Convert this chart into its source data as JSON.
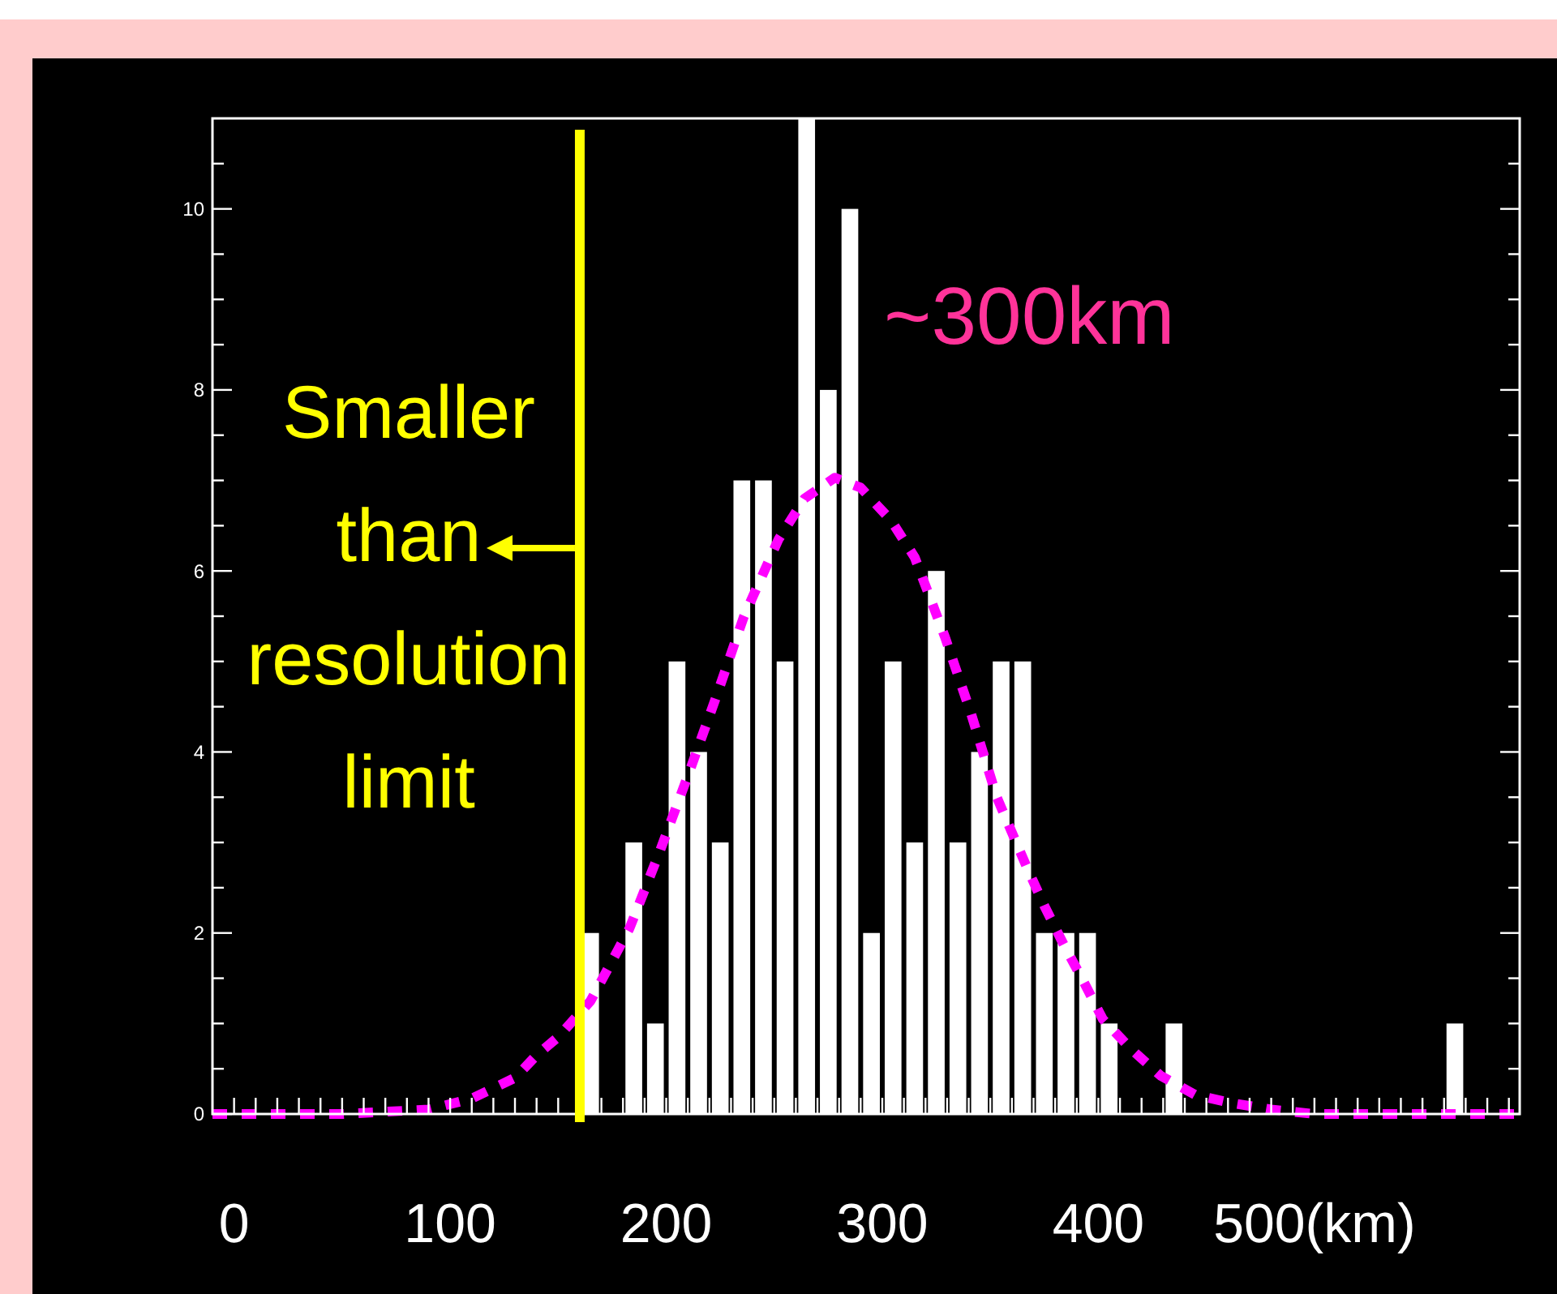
{
  "chart_data": {
    "type": "histogram",
    "series": [
      {
        "color": "#ffffff",
        "bins": [
          160,
          170,
          180,
          190,
          200,
          210,
          220,
          230,
          240,
          250,
          260,
          270,
          280,
          290,
          300,
          310,
          320,
          330,
          340,
          350,
          360,
          370,
          380,
          390,
          400,
          410,
          420,
          430,
          440,
          450,
          460,
          470,
          480,
          490,
          500,
          510,
          520,
          530,
          540,
          550,
          560,
          570,
          580,
          590
        ],
        "values": [
          2,
          0,
          3,
          1,
          5,
          4,
          3,
          7,
          7,
          5,
          11,
          8,
          10,
          2,
          5,
          3,
          6,
          3,
          4,
          5,
          5,
          2,
          2,
          2,
          1,
          0,
          0,
          1,
          0,
          0,
          0,
          0,
          0,
          0,
          0,
          0,
          0,
          0,
          0,
          0,
          1,
          0,
          0
        ]
      },
      {
        "type": "line",
        "color": "#ff00ff",
        "line_style": "dashed",
        "x": [
          -10,
          0,
          50,
          90,
          110,
          130,
          140,
          150,
          165,
          183,
          197,
          211,
          223,
          236,
          252,
          264,
          278,
          290,
          304,
          315,
          329,
          341,
          353,
          367,
          375,
          384,
          393,
          402,
          415,
          429,
          445,
          462,
          480,
          500,
          550,
          595
        ],
        "values": [
          0,
          0,
          0,
          0.05,
          0.17,
          0.4,
          0.65,
          0.85,
          1.25,
          2.05,
          2.9,
          3.8,
          4.6,
          5.5,
          6.35,
          6.8,
          7.03,
          6.92,
          6.56,
          6.15,
          5.27,
          4.43,
          3.5,
          2.72,
          2.3,
          1.87,
          1.47,
          1.05,
          0.72,
          0.42,
          0.21,
          0.12,
          0.05,
          0,
          0,
          0
        ]
      }
    ],
    "xlim": [
      -10,
      595
    ],
    "ylim": [
      0,
      11
    ],
    "xticks": [
      0,
      {
        "value": 10,
        "label": null
      },
      {
        "value": 20,
        "label": null
      },
      {
        "value": 30,
        "label": null
      },
      {
        "value": 40,
        "label": null
      },
      {
        "value": 50,
        "label": null
      },
      {
        "value": 60,
        "label": null
      },
      {
        "value": 70,
        "label": null
      },
      {
        "value": 80,
        "label": null
      },
      {
        "value": 90,
        "label": null
      },
      100,
      {
        "value": 110,
        "label": null
      },
      {
        "value": 120,
        "label": null
      },
      {
        "value": 130,
        "label": null
      },
      {
        "value": 140,
        "label": null
      },
      {
        "value": 150,
        "label": null
      },
      {
        "value": 160,
        "label": null
      },
      {
        "value": 170,
        "label": null
      },
      {
        "value": 180,
        "label": null
      },
      {
        "value": 190,
        "label": null
      },
      200,
      {
        "value": 210,
        "label": null
      },
      {
        "value": 220,
        "label": null
      },
      {
        "value": 230,
        "label": null
      },
      {
        "value": 240,
        "label": null
      },
      {
        "value": 250,
        "label": null
      },
      {
        "value": 260,
        "label": null
      },
      {
        "value": 270,
        "label": null
      },
      {
        "value": 280,
        "label": null
      },
      {
        "value": 290,
        "label": null
      },
      300,
      {
        "value": 310,
        "label": null
      },
      {
        "value": 320,
        "label": null
      },
      {
        "value": 330,
        "label": null
      },
      {
        "value": 340,
        "label": null
      },
      {
        "value": 350,
        "label": null
      },
      {
        "value": 360,
        "label": null
      },
      {
        "value": 370,
        "label": null
      },
      {
        "value": 380,
        "label": null
      },
      {
        "value": 390,
        "label": null
      },
      400,
      {
        "value": 410,
        "label": null
      },
      {
        "value": 420,
        "label": null
      },
      {
        "value": 430,
        "label": null
      },
      {
        "value": 440,
        "label": null
      },
      {
        "value": 450,
        "label": null
      },
      {
        "value": 460,
        "label": null
      },
      {
        "value": 470,
        "label": null
      },
      {
        "value": 480,
        "label": null
      },
      {
        "value": 490,
        "label": null
      },
      {
        "value": 500,
        "label": "500(km)"
      },
      {
        "value": 510,
        "label": null
      },
      {
        "value": 520,
        "label": null
      },
      {
        "value": 530,
        "label": null
      },
      {
        "value": 540,
        "label": null
      },
      {
        "value": 550,
        "label": null
      },
      {
        "value": 560,
        "label": null
      },
      {
        "value": 570,
        "label": null
      },
      {
        "value": 580,
        "label": null
      },
      {
        "value": 590,
        "label": null
      }
    ],
    "yticks": [
      0,
      {
        "value": 0.5,
        "label": null
      },
      {
        "value": 1,
        "label": null
      },
      {
        "value": 1.5,
        "label": null
      },
      2,
      {
        "value": 2.5,
        "label": null
      },
      {
        "value": 3,
        "label": null
      },
      {
        "value": 3.5,
        "label": null
      },
      4,
      {
        "value": 4.5,
        "label": null
      },
      {
        "value": 5,
        "label": null
      },
      {
        "value": 5.5,
        "label": null
      },
      6,
      {
        "value": 6.5,
        "label": null
      },
      {
        "value": 7,
        "label": null
      },
      {
        "value": 7.5,
        "label": null
      },
      8,
      {
        "value": 8.5,
        "label": null
      },
      {
        "value": 9,
        "label": null
      },
      {
        "value": 9.5,
        "label": null
      },
      10,
      {
        "value": 10.5,
        "label": null
      }
    ],
    "ref_lines": [
      {
        "axis": "x",
        "value": 160,
        "label": "Smaller than resolution limit",
        "color": "#ffff00"
      }
    ],
    "annotations": [
      "~300km"
    ],
    "grid": false
  }
}
